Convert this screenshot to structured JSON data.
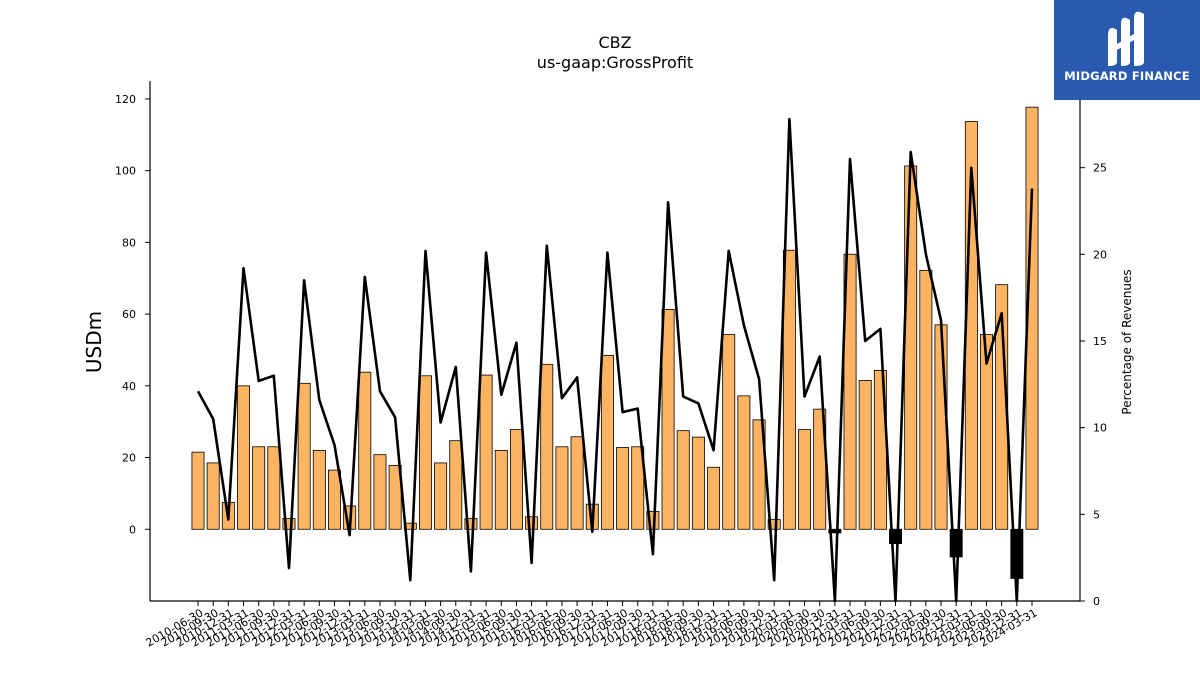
{
  "chart_data": {
    "type": "bar",
    "title": "CBZ",
    "subtitle": "us-gaap:GrossProfit",
    "ylabel": "USDm",
    "y2label": "Percentage of Revenues",
    "ylim": [
      -20,
      125
    ],
    "y2lim": [
      0,
      30
    ],
    "yticks": [
      0,
      20,
      40,
      60,
      80,
      100,
      120
    ],
    "y2ticks": [
      0,
      5,
      10,
      15,
      20,
      25
    ],
    "x_tick_labels": [
      "2010-06-30",
      "2010-09-30",
      "2010-12-31",
      "2011-03-31",
      "2011-06-30",
      "2011-09-30",
      "2011-12-31",
      "2012-03-31",
      "2012-06-30",
      "2012-09-30",
      "2012-12-31",
      "2013-03-31",
      "2013-06-30",
      "2013-09-30",
      "2013-12-31",
      "2014-03-31",
      "2014-06-30",
      "2014-09-30",
      "2014-12-31",
      "2015-03-31",
      "2015-06-30",
      "2015-09-30",
      "2015-12-31",
      "2016-03-31",
      "2016-06-30",
      "2016-09-30",
      "2016-12-31",
      "2017-03-31",
      "2017-06-30",
      "2017-09-30",
      "2017-12-31",
      "2018-03-31",
      "2018-06-30",
      "2018-09-30",
      "2018-12-31",
      "2019-03-31",
      "2019-06-30",
      "2019-09-30",
      "2019-12-31",
      "2020-03-31",
      "2020-06-30",
      "2020-09-30",
      "2020-12-31",
      "2021-03-31",
      "2021-06-30",
      "2021-09-30",
      "2021-12-31",
      "2022-03-31",
      "2022-06-30",
      "2022-09-30",
      "2022-12-31",
      "2023-03-31",
      "2023-06-30",
      "2023-09-30",
      "2023-12-31",
      "2024-03-31"
    ],
    "series": [
      {
        "kind": "bar",
        "axis": "left",
        "color": "#fdb462",
        "values": [
          21.5,
          18.5,
          7.5,
          40.0,
          23.0,
          23.0,
          3.0,
          40.7,
          22.0,
          16.5,
          6.5,
          43.8,
          20.8,
          17.8,
          1.7,
          42.8,
          18.5,
          24.7,
          3.0,
          43.0,
          22.0,
          27.8,
          3.5,
          46.0,
          23.0,
          25.8,
          7.0,
          48.5,
          22.8,
          23.0,
          5.0,
          61.3,
          27.5,
          25.7,
          17.3,
          54.3,
          37.2,
          30.5,
          2.7,
          77.8,
          27.8,
          33.5,
          -1.0,
          76.7,
          41.5,
          44.3,
          -4.0,
          101.3,
          72.2,
          57.0,
          -7.7,
          113.7,
          54.3,
          68.2,
          -13.7,
          117.7
        ]
      },
      {
        "kind": "line",
        "axis": "right",
        "color": "#000000",
        "values": [
          12.1,
          10.5,
          4.7,
          19.2,
          12.7,
          13.0,
          1.9,
          18.5,
          11.6,
          9.0,
          3.8,
          18.7,
          12.1,
          10.6,
          1.2,
          20.2,
          10.3,
          13.5,
          1.7,
          20.1,
          11.9,
          14.9,
          2.2,
          20.5,
          11.7,
          12.9,
          4.0,
          20.1,
          10.9,
          11.1,
          2.7,
          23.0,
          11.8,
          11.4,
          8.7,
          20.2,
          15.9,
          12.8,
          1.2,
          27.8,
          11.8,
          14.1,
          0.0,
          25.5,
          15.0,
          15.7,
          0.0,
          25.9,
          20.0,
          16.2,
          0.0,
          25.0,
          13.7,
          16.6,
          0.0,
          23.8
        ]
      }
    ]
  },
  "logo": {
    "text": "MIDGARD FINANCE",
    "icon": "midgard-logo-icon"
  }
}
